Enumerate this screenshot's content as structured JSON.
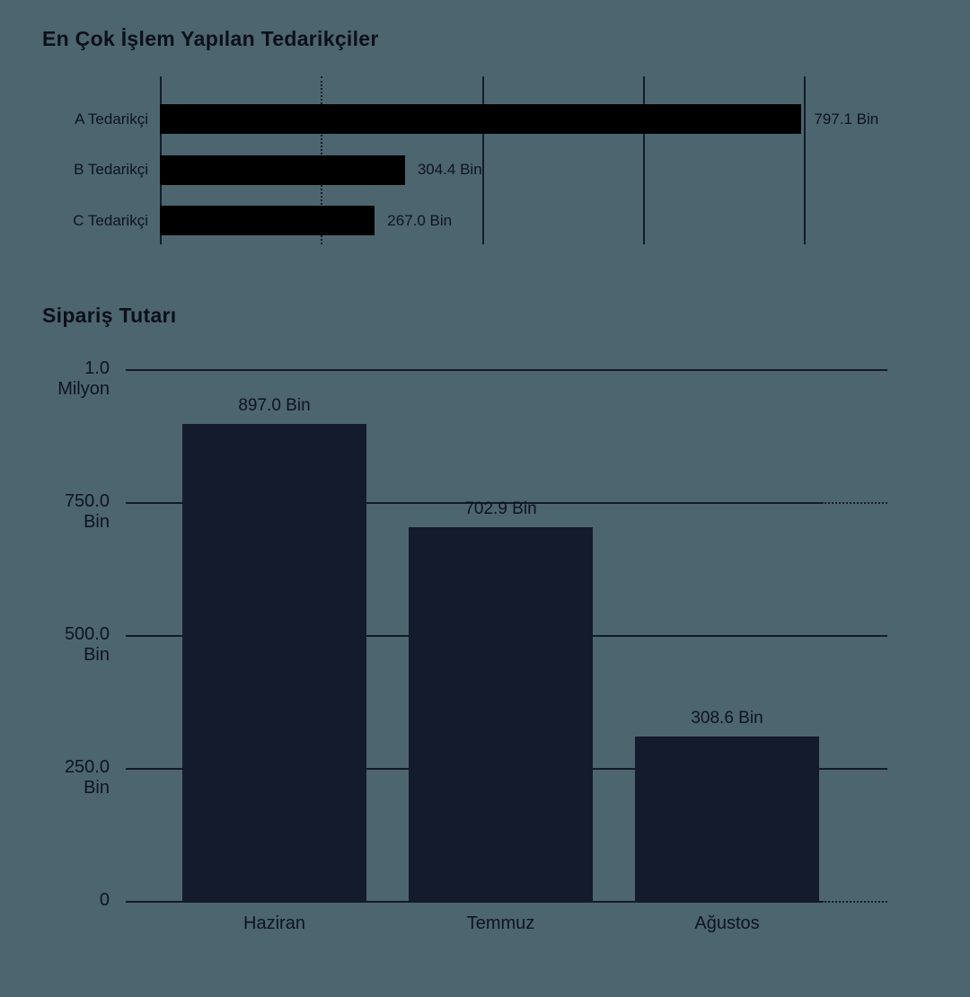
{
  "page": {
    "background": "#4d656f",
    "text_color": "#0d1422",
    "grid_color": "#131b29"
  },
  "chart_data": [
    {
      "type": "bar",
      "orientation": "horizontal",
      "title": "En Çok İşlem Yapılan Tedarikçiler",
      "categories": [
        "A Tedarikçi",
        "B Tedarikçi",
        "C Tedarikçi"
      ],
      "values": [
        797100,
        304400,
        267000
      ],
      "value_labels": [
        "797.1 Bin",
        "304.4 Bin",
        "267.0 Bin"
      ],
      "xlim": [
        0,
        800000
      ],
      "xticks": [
        0,
        200000,
        400000,
        600000,
        800000
      ],
      "grid": true,
      "bar_color": "#000000"
    },
    {
      "type": "bar",
      "orientation": "vertical",
      "title": "Sipariş Tutarı",
      "categories": [
        "Haziran",
        "Temmuz",
        "Ağustos"
      ],
      "values": [
        897000,
        702900,
        308600
      ],
      "value_labels": [
        "897.0 Bin",
        "702.9 Bin",
        "308.6 Bin"
      ],
      "ylim": [
        0,
        1000000
      ],
      "ytick_values": [
        1000000,
        750000,
        500000,
        250000,
        0
      ],
      "ytick_labels": [
        [
          "1.0",
          "Milyon"
        ],
        [
          "750.0",
          "Bin"
        ],
        [
          "500.0",
          "Bin"
        ],
        [
          "250.0",
          "Bin"
        ],
        [
          "0"
        ]
      ],
      "grid": true,
      "bar_color": "#131b2c"
    }
  ]
}
